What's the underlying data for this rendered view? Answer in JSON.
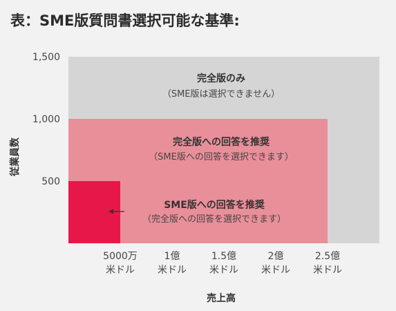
{
  "title": "表：SME版質問書選択可能な基準:",
  "chart_data": {
    "type": "area",
    "xlabel": "売上高",
    "ylabel": "従業員数",
    "x_ticks": [
      {
        "value": 0.5,
        "line1": "5000万",
        "line2": "米ドル"
      },
      {
        "value": 1.0,
        "line1": "1億",
        "line2": "米ドル"
      },
      {
        "value": 1.5,
        "line1": "1.5億",
        "line2": "米ドル"
      },
      {
        "value": 2.0,
        "line1": "2億",
        "line2": "米ドル"
      },
      {
        "value": 2.5,
        "line1": "2.5億",
        "line2": "米ドル"
      }
    ],
    "y_ticks": [
      {
        "value": 1500,
        "label": "1,500"
      },
      {
        "value": 1000,
        "label": "1,000"
      },
      {
        "value": 500,
        "label": "500"
      }
    ],
    "xlim": [
      0,
      3.0
    ],
    "ylim": [
      0,
      1500
    ],
    "zones": [
      {
        "title": "完全版のみ",
        "subtitle": "（SME版は選択できません）",
        "x_max": 3.0,
        "y_max": 1500,
        "color": "#d5d5d5"
      },
      {
        "title": "完全版への回答を推奨",
        "subtitle": "（SME版への回答を選択できます）",
        "x_max": 2.5,
        "y_max": 1000,
        "color": "#e98f9a"
      },
      {
        "title": "SME版への回答を推奨",
        "subtitle": "（完全版への回答を選択できます）",
        "x_max": 0.5,
        "y_max": 500,
        "color": "#e8174a"
      }
    ]
  }
}
